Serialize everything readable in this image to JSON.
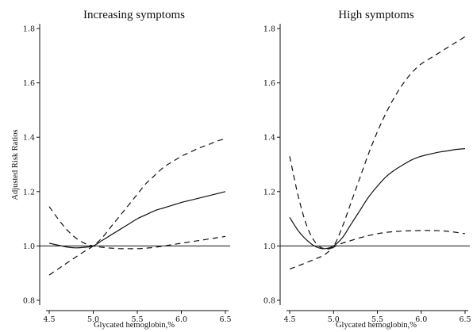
{
  "chart_data": {
    "type": "line",
    "ylabel": "Adjusted Risk Ratios",
    "reference_line": 1.0,
    "panels": [
      {
        "title": "Increasing symptoms",
        "xlabel": "Glycated hemoglobin,%",
        "xlim": [
          4.5,
          6.5
        ],
        "ylim": [
          0.8,
          1.8
        ],
        "x_ticks": [
          "4.5",
          "5.0",
          "5.5",
          "6.0",
          "6.5"
        ],
        "y_ticks": [
          "0.8",
          "1.0",
          "1.2",
          "1.4",
          "1.6",
          "1.8"
        ],
        "series": [
          {
            "style": "solid",
            "x": [
              4.5,
              4.6,
              4.7,
              4.8,
              4.9,
              5.0,
              5.1,
              5.2,
              5.3,
              5.4,
              5.5,
              5.6,
              5.7,
              5.8,
              5.9,
              6.0,
              6.1,
              6.2,
              6.3,
              6.4,
              6.5
            ],
            "y": [
              1.01,
              1.003,
              0.996,
              0.993,
              0.995,
              1.0,
              1.02,
              1.04,
              1.06,
              1.08,
              1.1,
              1.115,
              1.13,
              1.14,
              1.15,
              1.16,
              1.168,
              1.176,
              1.184,
              1.192,
              1.2
            ]
          },
          {
            "style": "dashed",
            "x": [
              4.5,
              4.6,
              4.7,
              4.8,
              4.9,
              5.0,
              5.1,
              5.2,
              5.3,
              5.4,
              5.5,
              5.6,
              5.7,
              5.8,
              5.9,
              6.0,
              6.1,
              6.2,
              6.3,
              6.4,
              6.5
            ],
            "y": [
              0.893,
              0.915,
              0.937,
              0.959,
              0.98,
              1.0,
              1.03,
              1.07,
              1.11,
              1.15,
              1.19,
              1.23,
              1.26,
              1.29,
              1.31,
              1.33,
              1.345,
              1.36,
              1.372,
              1.385,
              1.395
            ]
          },
          {
            "style": "dashed",
            "x": [
              4.5,
              4.6,
              4.7,
              4.8,
              4.9,
              5.0,
              5.1,
              5.2,
              5.3,
              5.4,
              5.5,
              5.6,
              5.7,
              5.8,
              5.9,
              6.0,
              6.1,
              6.2,
              6.3,
              6.4,
              6.5
            ],
            "y": [
              1.145,
              1.1,
              1.06,
              1.03,
              1.01,
              1.0,
              0.995,
              0.992,
              0.99,
              0.99,
              0.99,
              0.992,
              0.995,
              1.0,
              1.005,
              1.01,
              1.015,
              1.02,
              1.025,
              1.03,
              1.035
            ]
          }
        ]
      },
      {
        "title": "High symptoms",
        "xlabel": "Glycated hemoglobin,%",
        "xlim": [
          4.5,
          6.5
        ],
        "ylim": [
          0.8,
          1.8
        ],
        "x_ticks": [
          "4.5",
          "5.0",
          "5.5",
          "6.0",
          "6.5"
        ],
        "y_ticks": [
          "0.8",
          "1.0",
          "1.2",
          "1.4",
          "1.6",
          "1.8"
        ],
        "series": [
          {
            "style": "solid",
            "x": [
              4.5,
              4.6,
              4.7,
              4.8,
              4.9,
              5.0,
              5.1,
              5.2,
              5.3,
              5.4,
              5.5,
              5.6,
              5.7,
              5.8,
              5.9,
              6.0,
              6.1,
              6.2,
              6.3,
              6.4,
              6.5
            ],
            "y": [
              1.105,
              1.055,
              1.02,
              0.997,
              0.99,
              1.0,
              1.03,
              1.08,
              1.13,
              1.18,
              1.22,
              1.255,
              1.28,
              1.3,
              1.318,
              1.33,
              1.338,
              1.345,
              1.35,
              1.355,
              1.358
            ]
          },
          {
            "style": "dashed",
            "x": [
              4.5,
              4.6,
              4.7,
              4.8,
              4.9,
              5.0,
              5.1,
              5.2,
              5.3,
              5.4,
              5.5,
              5.6,
              5.7,
              5.8,
              5.9,
              6.0,
              6.1,
              6.2,
              6.3,
              6.4,
              6.5
            ],
            "y": [
              1.33,
              1.18,
              1.07,
              1.01,
              0.99,
              1.0,
              1.07,
              1.16,
              1.25,
              1.34,
              1.42,
              1.49,
              1.55,
              1.6,
              1.64,
              1.67,
              1.69,
              1.71,
              1.73,
              1.75,
              1.77
            ]
          },
          {
            "style": "dashed",
            "x": [
              4.5,
              4.6,
              4.7,
              4.8,
              4.9,
              5.0,
              5.1,
              5.2,
              5.3,
              5.4,
              5.5,
              5.6,
              5.7,
              5.8,
              5.9,
              6.0,
              6.1,
              6.2,
              6.3,
              6.4,
              6.5
            ],
            "y": [
              0.915,
              0.927,
              0.94,
              0.953,
              0.968,
              0.995,
              1.01,
              1.02,
              1.03,
              1.038,
              1.045,
              1.05,
              1.053,
              1.055,
              1.056,
              1.057,
              1.057,
              1.056,
              1.054,
              1.05,
              1.045
            ]
          }
        ]
      }
    ]
  }
}
